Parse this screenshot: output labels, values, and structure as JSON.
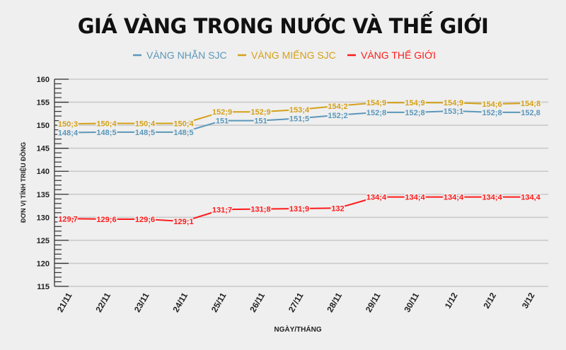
{
  "chart_data": {
    "type": "line",
    "title": "GIÁ VÀNG TRONG NƯỚC VÀ THẾ GIỚI",
    "xlabel": "NGÀY/THÁNG",
    "ylabel": "ĐƠN VỊ TÍNH TRIỆU ĐỒNG",
    "ylim": [
      115,
      160
    ],
    "yticks": [
      115,
      120,
      125,
      130,
      135,
      140,
      145,
      150,
      155,
      160
    ],
    "categories": [
      "21/11",
      "22/11",
      "23/11",
      "24/11",
      "25/11",
      "26/11",
      "27/11",
      "28/11",
      "29/11",
      "30/11",
      "1/12",
      "2/12",
      "3/12"
    ],
    "legend_position": "top-center",
    "grid": true,
    "series": [
      {
        "name": "VÀNG NHẪN SJC",
        "color": "#5b97b9",
        "values": [
          148.4,
          148.5,
          148.5,
          148.5,
          151,
          151,
          151.5,
          152.2,
          152.8,
          152.8,
          153.1,
          152.8,
          152.8
        ],
        "labels": [
          "148;4",
          "148;5",
          "148;5",
          "148;5",
          "151",
          "151",
          "151;5",
          "152;2",
          "152;8",
          "152;8",
          "153;1",
          "152;8",
          "152,8"
        ]
      },
      {
        "name": "VÀNG MIẾNG SJC",
        "color": "#d4a017",
        "values": [
          150.3,
          150.4,
          150.4,
          150.4,
          152.9,
          152.9,
          153.4,
          154.2,
          154.9,
          154.9,
          154.9,
          154.6,
          154.8
        ],
        "labels": [
          "150;3",
          "150;4",
          "150;4",
          "150;4",
          "152;9",
          "152;9",
          "153;4",
          "154;2",
          "154;9",
          "154;9",
          "154;9",
          "154;6",
          "154;8"
        ]
      },
      {
        "name": "VÀNG THẾ GIỚI",
        "color": "#ff1a1a",
        "values": [
          129.7,
          129.6,
          129.6,
          129.1,
          131.7,
          131.8,
          131.9,
          132,
          134.4,
          134.4,
          134.4,
          134.4,
          134.4
        ],
        "labels": [
          "129,7",
          "129;6",
          "129;6",
          "129;1",
          "131;7",
          "131;8",
          "131;9",
          "132",
          "134;4",
          "134;4",
          "134;4",
          "134;4",
          "134,4"
        ]
      }
    ]
  }
}
